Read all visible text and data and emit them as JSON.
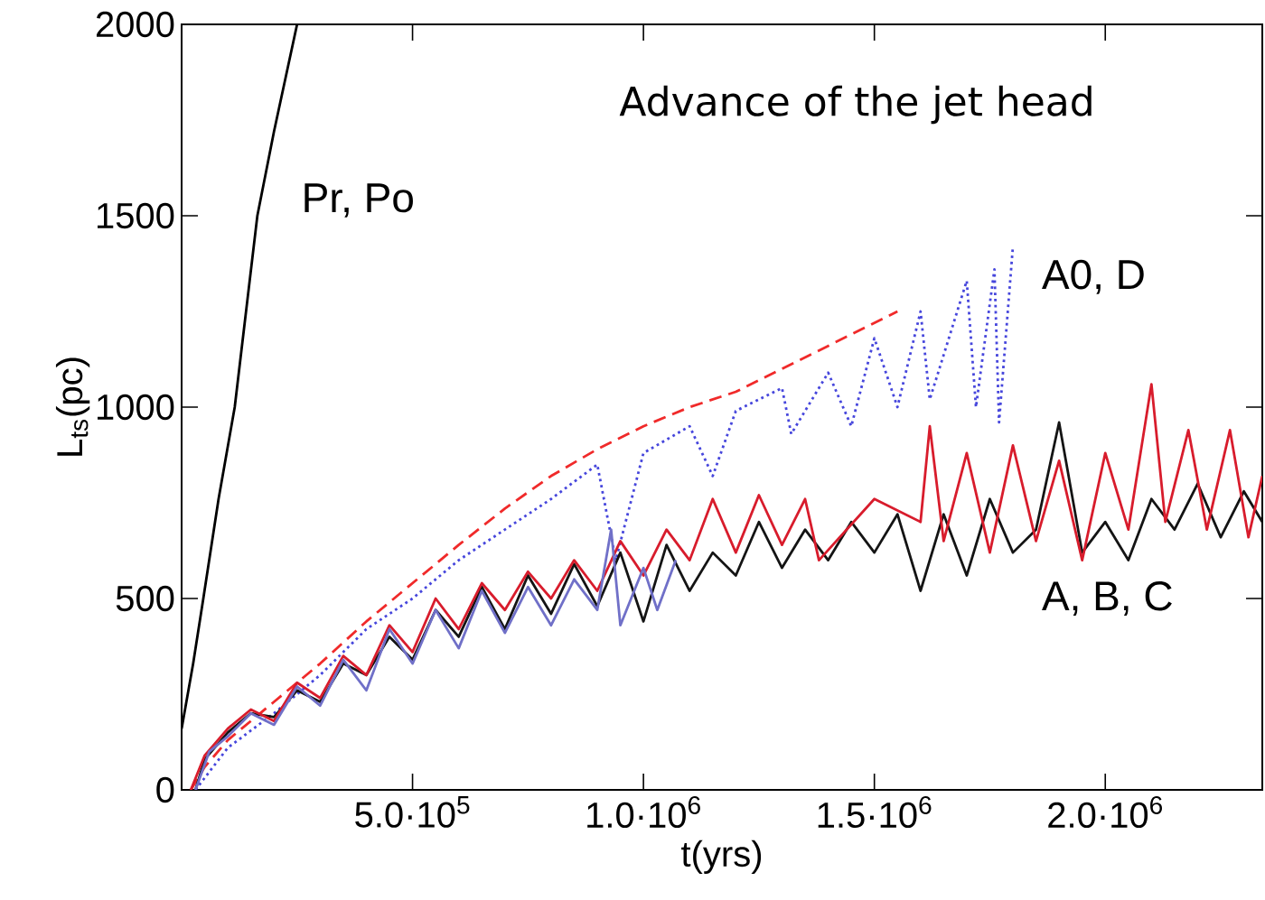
{
  "chart_data": {
    "type": "line",
    "title": "Advance of the jet head",
    "xlabel": "t(yrs)",
    "ylabel": "L$_{ts}$(pc)",
    "xlim": [
      0,
      2340000
    ],
    "ylim": [
      0,
      2000
    ],
    "xticks": [
      {
        "value": 0,
        "label": null
      },
      {
        "value": 500000,
        "label": "5.0·10$^{5}$"
      },
      {
        "value": 1000000,
        "label": "1.0·10$^{6}$"
      },
      {
        "value": 1500000,
        "label": "1.5·10$^{6}$"
      },
      {
        "value": 2000000,
        "label": "2.0·10$^{6}$"
      }
    ],
    "yticks": [
      0,
      500,
      1000,
      1500,
      2000
    ],
    "grid": false,
    "series": [
      {
        "color": "#000000",
        "line_style": "solid",
        "x": [
          0,
          25000,
          47000,
          80000,
          115000,
          164000,
          200000,
          250000
        ],
        "values": [
          160,
          330,
          500,
          760,
          1000,
          1500,
          1720,
          2000
        ]
      },
      {
        "color": "#f02a2a",
        "line_style": "dashed",
        "x": [
          20000,
          50000,
          100000,
          200000,
          300000,
          400000,
          500000,
          600000,
          700000,
          800000,
          900000,
          1000000,
          1100000,
          1200000,
          1300000,
          1400000,
          1500000,
          1550000
        ],
        "values": [
          0,
          60,
          130,
          230,
          330,
          440,
          540,
          640,
          735,
          820,
          890,
          950,
          1000,
          1040,
          1100,
          1160,
          1220,
          1250
        ]
      },
      {
        "color": "#4646dc",
        "line_style": "dotted",
        "x": [
          30000,
          100000,
          200000,
          300000,
          400000,
          500000,
          600000,
          700000,
          800000,
          900000,
          940000,
          1000000,
          1100000,
          1150000,
          1200000,
          1300000,
          1320000,
          1400000,
          1450000,
          1500000,
          1550000,
          1600000,
          1620000,
          1700000,
          1720000,
          1760000,
          1770000,
          1800000
        ],
        "values": [
          0,
          110,
          200,
          300,
          420,
          500,
          600,
          680,
          760,
          850,
          600,
          880,
          950,
          820,
          990,
          1050,
          930,
          1090,
          950,
          1180,
          1000,
          1250,
          1020,
          1330,
          1000,
          1360,
          960,
          1420
        ]
      },
      {
        "color": "#141414",
        "line_style": "solid",
        "x": [
          30000,
          50000,
          100000,
          150000,
          200000,
          250000,
          300000,
          350000,
          400000,
          450000,
          500000,
          550000,
          600000,
          650000,
          700000,
          750000,
          800000,
          850000,
          900000,
          950000,
          1000000,
          1050000,
          1100000,
          1150000,
          1200000,
          1250000,
          1300000,
          1350000,
          1400000,
          1450000,
          1500000,
          1550000,
          1600000,
          1650000,
          1700000,
          1750000,
          1800000,
          1850000,
          1900000,
          1950000,
          2000000,
          2050000,
          2100000,
          2150000,
          2200000,
          2250000,
          2300000,
          2340000
        ],
        "values": [
          0,
          80,
          150,
          200,
          190,
          260,
          230,
          330,
          300,
          400,
          340,
          470,
          400,
          530,
          420,
          560,
          460,
          590,
          480,
          620,
          440,
          640,
          520,
          620,
          560,
          700,
          580,
          680,
          600,
          700,
          620,
          720,
          520,
          720,
          560,
          760,
          620,
          680,
          960,
          620,
          700,
          600,
          760,
          680,
          800,
          660,
          780,
          700
        ]
      },
      {
        "color": "#d81c2c",
        "line_style": "solid",
        "x": [
          20000,
          50000,
          100000,
          150000,
          200000,
          250000,
          300000,
          350000,
          400000,
          450000,
          500000,
          550000,
          600000,
          650000,
          700000,
          750000,
          800000,
          850000,
          900000,
          950000,
          1000000,
          1050000,
          1100000,
          1150000,
          1200000,
          1250000,
          1300000,
          1350000,
          1380000,
          1500000,
          1600000,
          1620000,
          1650000,
          1700000,
          1750000,
          1800000,
          1850000,
          1900000,
          1950000,
          2000000,
          2050000,
          2100000,
          2130000,
          2180000,
          2220000,
          2270000,
          2310000,
          2340000
        ],
        "values": [
          0,
          90,
          160,
          210,
          180,
          280,
          240,
          350,
          300,
          430,
          360,
          500,
          420,
          540,
          470,
          570,
          500,
          600,
          520,
          650,
          560,
          680,
          600,
          760,
          620,
          770,
          640,
          760,
          600,
          760,
          700,
          950,
          650,
          880,
          620,
          900,
          650,
          860,
          600,
          880,
          680,
          1060,
          700,
          940,
          680,
          940,
          660,
          820
        ]
      },
      {
        "color": "#7070c8",
        "line_style": "solid",
        "x": [
          30000,
          60000,
          100000,
          150000,
          200000,
          250000,
          300000,
          350000,
          400000,
          450000,
          500000,
          550000,
          600000,
          650000,
          700000,
          750000,
          800000,
          850000,
          900000,
          930000,
          950000,
          1000000,
          1030000,
          1070000
        ],
        "values": [
          0,
          100,
          140,
          200,
          170,
          270,
          220,
          340,
          260,
          420,
          330,
          470,
          370,
          520,
          410,
          530,
          430,
          550,
          470,
          680,
          430,
          580,
          470,
          600
        ]
      }
    ],
    "annotations": [
      "Pr, Po",
      "A0, D",
      "A, B, C"
    ]
  }
}
